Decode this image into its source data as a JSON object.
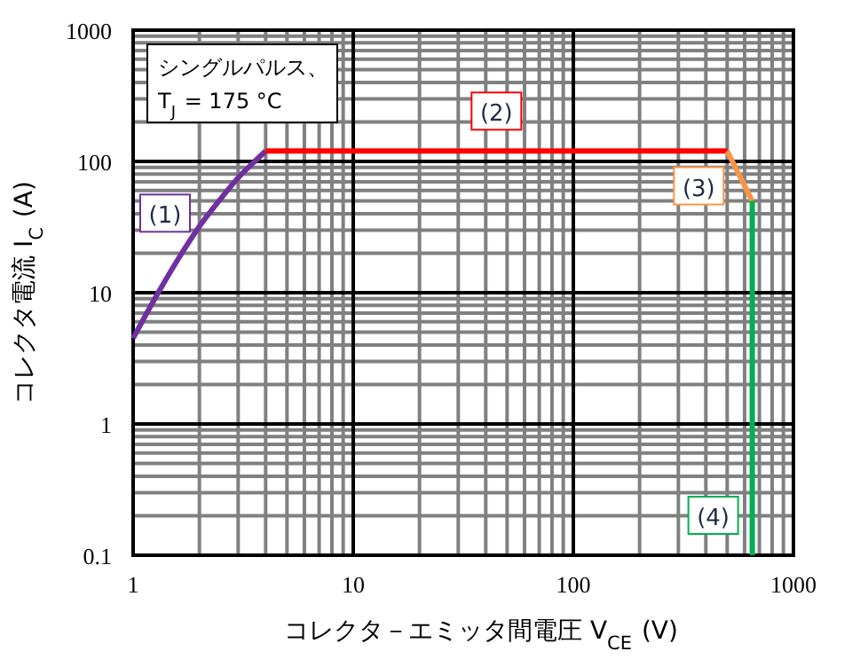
{
  "chart_data": {
    "type": "line",
    "xlabel": "コレクタ－エミッタ間電圧 V$_{CE}$ (V)",
    "ylabel": "コレクタ電流 I$_{C}$ (A)",
    "log": "xy",
    "grid": true,
    "marker": "none",
    "line_style": "solid",
    "xlim": [
      1,
      1000
    ],
    "xticks": [
      1,
      10,
      100,
      1000
    ],
    "ylim": [
      0.1,
      1000
    ],
    "yticks": [
      0.1,
      1,
      10,
      100,
      1000
    ],
    "annotations": [
      "シングルパルス、",
      "T$_{J}$ = 175 °C"
    ],
    "series": [
      {
        "name": "(1)",
        "color": "#7030a0",
        "x": [
          1,
          1.3,
          1.6,
          2,
          2.5,
          3,
          3.5,
          4
        ],
        "values": [
          4.5,
          10,
          18,
          32,
          52,
          75,
          97,
          120
        ]
      },
      {
        "name": "(2)",
        "color": "#ff0000",
        "x": [
          4,
          500
        ],
        "values": [
          120,
          120
        ]
      },
      {
        "name": "(3)",
        "color": "#f79646",
        "x": [
          500,
          650
        ],
        "values": [
          120,
          50
        ]
      },
      {
        "name": "(4)",
        "color": "#00b050",
        "x": [
          650,
          650
        ],
        "values": [
          50,
          0.1
        ]
      }
    ]
  }
}
